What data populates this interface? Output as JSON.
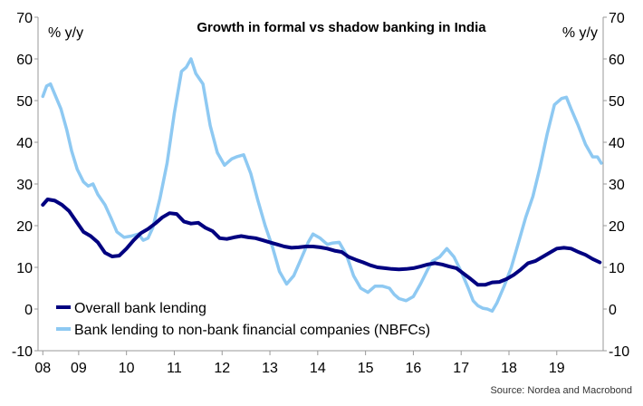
{
  "chart_data": {
    "type": "line",
    "title": "Growth in formal vs shadow banking in India",
    "left_unit": "% y/y",
    "right_unit": "% y/y",
    "source": "Source: Nordea and Macrobond",
    "ylim": [
      -10,
      70
    ],
    "y_ticks": [
      -10,
      0,
      10,
      20,
      30,
      40,
      50,
      60,
      70
    ],
    "x_tick_labels": [
      "08",
      "09",
      "10",
      "11",
      "12",
      "13",
      "14",
      "15",
      "16",
      "17",
      "18",
      "19"
    ],
    "x_tick_positions": [
      2008.0,
      2008.75,
      2009.75,
      2010.75,
      2011.75,
      2012.75,
      2013.75,
      2014.75,
      2015.75,
      2016.75,
      2017.75,
      2018.75
    ],
    "xlim": [
      2007.9,
      2019.72
    ],
    "grid": false,
    "legend_position": "bottom-left",
    "colors": {
      "overall": "#000080",
      "nbfc": "#8ec9f2",
      "axis": "#999999"
    },
    "series": [
      {
        "name": "Overall bank lending",
        "color": "#000080",
        "points": [
          [
            2008.0,
            25
          ],
          [
            2008.1,
            26.3
          ],
          [
            2008.25,
            26
          ],
          [
            2008.4,
            25
          ],
          [
            2008.55,
            23.5
          ],
          [
            2008.7,
            21
          ],
          [
            2008.85,
            18.5
          ],
          [
            2009.0,
            17.5
          ],
          [
            2009.15,
            16
          ],
          [
            2009.3,
            13.5
          ],
          [
            2009.45,
            12.6
          ],
          [
            2009.6,
            12.8
          ],
          [
            2009.75,
            14.5
          ],
          [
            2009.9,
            16.5
          ],
          [
            2010.05,
            18.2
          ],
          [
            2010.2,
            19.2
          ],
          [
            2010.35,
            20.5
          ],
          [
            2010.5,
            22
          ],
          [
            2010.65,
            23
          ],
          [
            2010.8,
            22.8
          ],
          [
            2010.95,
            21
          ],
          [
            2011.1,
            20.5
          ],
          [
            2011.25,
            20.7
          ],
          [
            2011.4,
            19.5
          ],
          [
            2011.55,
            18.7
          ],
          [
            2011.7,
            17
          ],
          [
            2011.85,
            16.8
          ],
          [
            2012.0,
            17.2
          ],
          [
            2012.15,
            17.5
          ],
          [
            2012.3,
            17.2
          ],
          [
            2012.45,
            17
          ],
          [
            2012.6,
            16.5
          ],
          [
            2012.75,
            16
          ],
          [
            2012.9,
            15.5
          ],
          [
            2013.05,
            15
          ],
          [
            2013.2,
            14.7
          ],
          [
            2013.35,
            14.8
          ],
          [
            2013.5,
            15
          ],
          [
            2013.65,
            15
          ],
          [
            2013.8,
            14.8
          ],
          [
            2013.95,
            14.5
          ],
          [
            2014.1,
            14
          ],
          [
            2014.25,
            13.7
          ],
          [
            2014.4,
            12.5
          ],
          [
            2014.55,
            11.8
          ],
          [
            2014.7,
            11.2
          ],
          [
            2014.85,
            10.5
          ],
          [
            2015.0,
            10
          ],
          [
            2015.15,
            9.8
          ],
          [
            2015.3,
            9.6
          ],
          [
            2015.45,
            9.5
          ],
          [
            2015.6,
            9.6
          ],
          [
            2015.75,
            9.8
          ],
          [
            2015.9,
            10.2
          ],
          [
            2016.05,
            10.7
          ],
          [
            2016.2,
            11
          ],
          [
            2016.35,
            10.7
          ],
          [
            2016.5,
            10.2
          ],
          [
            2016.65,
            9.8
          ],
          [
            2016.8,
            8.5
          ],
          [
            2016.95,
            7.2
          ],
          [
            2017.1,
            5.8
          ],
          [
            2017.25,
            5.8
          ],
          [
            2017.4,
            6.4
          ],
          [
            2017.55,
            6.5
          ],
          [
            2017.7,
            7.2
          ],
          [
            2017.85,
            8.2
          ],
          [
            2018.0,
            9.5
          ],
          [
            2018.15,
            11
          ],
          [
            2018.3,
            11.5
          ],
          [
            2018.45,
            12.5
          ],
          [
            2018.6,
            13.5
          ],
          [
            2018.75,
            14.5
          ],
          [
            2018.9,
            14.7
          ],
          [
            2019.05,
            14.5
          ],
          [
            2019.2,
            13.7
          ],
          [
            2019.35,
            13
          ],
          [
            2019.5,
            12
          ],
          [
            2019.65,
            11.2
          ]
        ]
      },
      {
        "name": "Bank lending to non-bank financial companies (NBFCs)",
        "color": "#8ec9f2",
        "points": [
          [
            2008.0,
            51
          ],
          [
            2008.08,
            53.5
          ],
          [
            2008.16,
            54
          ],
          [
            2008.25,
            51.5
          ],
          [
            2008.38,
            48
          ],
          [
            2008.5,
            43
          ],
          [
            2008.6,
            38
          ],
          [
            2008.72,
            33.5
          ],
          [
            2008.85,
            30.5
          ],
          [
            2008.95,
            29.5
          ],
          [
            2009.05,
            30
          ],
          [
            2009.15,
            27.5
          ],
          [
            2009.3,
            25
          ],
          [
            2009.42,
            22
          ],
          [
            2009.55,
            18.5
          ],
          [
            2009.7,
            17.2
          ],
          [
            2009.85,
            17.5
          ],
          [
            2010.0,
            18
          ],
          [
            2010.1,
            16.5
          ],
          [
            2010.2,
            17
          ],
          [
            2010.3,
            19.5
          ],
          [
            2010.45,
            26.5
          ],
          [
            2010.6,
            35
          ],
          [
            2010.75,
            47
          ],
          [
            2010.9,
            57
          ],
          [
            2011.0,
            58
          ],
          [
            2011.1,
            60
          ],
          [
            2011.2,
            56.5
          ],
          [
            2011.35,
            54
          ],
          [
            2011.5,
            44
          ],
          [
            2011.65,
            37.5
          ],
          [
            2011.8,
            34.5
          ],
          [
            2011.95,
            36
          ],
          [
            2012.05,
            36.5
          ],
          [
            2012.2,
            37
          ],
          [
            2012.35,
            32.5
          ],
          [
            2012.5,
            26
          ],
          [
            2012.65,
            20
          ],
          [
            2012.8,
            15
          ],
          [
            2012.95,
            9
          ],
          [
            2013.1,
            6
          ],
          [
            2013.25,
            8
          ],
          [
            2013.4,
            12
          ],
          [
            2013.55,
            16
          ],
          [
            2013.65,
            18
          ],
          [
            2013.8,
            17
          ],
          [
            2013.95,
            15.5
          ],
          [
            2014.05,
            15.8
          ],
          [
            2014.2,
            16
          ],
          [
            2014.35,
            13
          ],
          [
            2014.5,
            8
          ],
          [
            2014.65,
            5
          ],
          [
            2014.8,
            4
          ],
          [
            2014.95,
            5.5
          ],
          [
            2015.1,
            5.5
          ],
          [
            2015.25,
            5
          ],
          [
            2015.35,
            3.5
          ],
          [
            2015.45,
            2.5
          ],
          [
            2015.6,
            2
          ],
          [
            2015.75,
            3
          ],
          [
            2015.9,
            6
          ],
          [
            2016.05,
            9.5
          ],
          [
            2016.15,
            11.5
          ],
          [
            2016.3,
            12.5
          ],
          [
            2016.45,
            14.5
          ],
          [
            2016.6,
            12.5
          ],
          [
            2016.75,
            9
          ],
          [
            2016.9,
            5
          ],
          [
            2017.0,
            2
          ],
          [
            2017.1,
            0.8
          ],
          [
            2017.2,
            0.2
          ],
          [
            2017.3,
            0
          ],
          [
            2017.4,
            -0.5
          ],
          [
            2017.5,
            1.5
          ],
          [
            2017.65,
            5.5
          ],
          [
            2017.8,
            10
          ],
          [
            2017.95,
            16
          ],
          [
            2018.1,
            22
          ],
          [
            2018.25,
            27
          ],
          [
            2018.4,
            34
          ],
          [
            2018.55,
            42
          ],
          [
            2018.7,
            49
          ],
          [
            2018.85,
            50.5
          ],
          [
            2018.95,
            50.8
          ],
          [
            2019.05,
            48
          ],
          [
            2019.2,
            44
          ],
          [
            2019.35,
            39.5
          ],
          [
            2019.5,
            36.5
          ],
          [
            2019.6,
            36.5
          ],
          [
            2019.68,
            35
          ]
        ]
      }
    ]
  }
}
